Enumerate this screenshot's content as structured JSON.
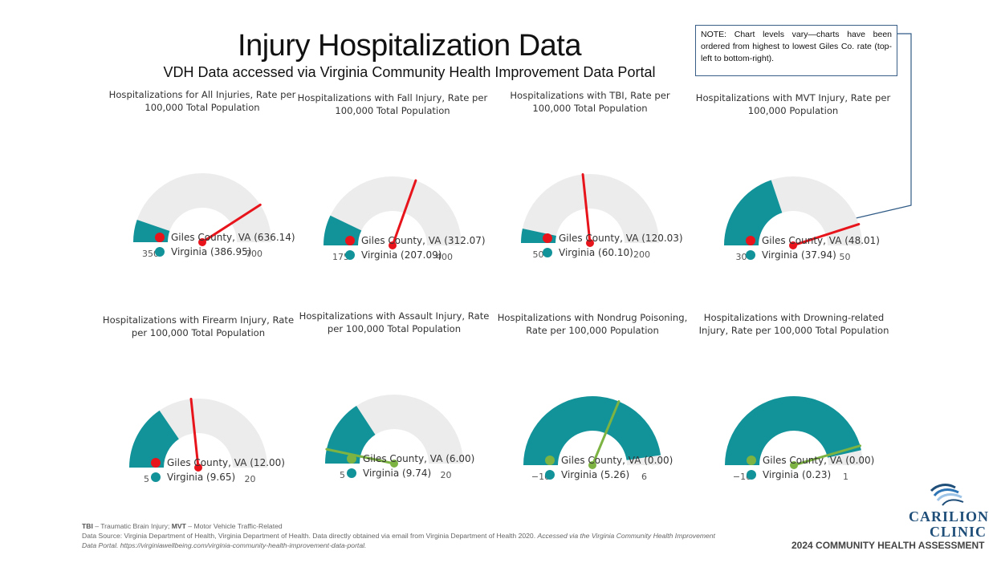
{
  "header": {
    "title": "Injury Hospitalization Data",
    "subtitle": "VDH Data accessed via Virginia Community Health Improvement Data Portal"
  },
  "note": "NOTE:  Chart levels vary—charts have been ordered from highest to lowest Giles Co. rate (top-left to bottom-right).",
  "colors": {
    "giles_above": "#e8141c",
    "giles_below": "#7cb342",
    "virginia": "#12939a",
    "track": "#ececec",
    "connector": "#2f5a86"
  },
  "chart_data": [
    {
      "type": "gauge",
      "title": "Hospitalizations for All Injuries, Rate per 100,000 Total Population",
      "min": 350,
      "max": 700,
      "min_label": "350",
      "max_label": "700",
      "giles": 636.14,
      "virginia": 386.95,
      "legend_giles": "Giles County, VA (636.14)",
      "legend_virginia": "Virginia (386.95)"
    },
    {
      "type": "gauge",
      "title": "Hospitalizations with Fall Injury, Rate per 100,000 Total Population",
      "min": 175,
      "max": 400,
      "min_label": "175",
      "max_label": "400",
      "giles": 312.07,
      "virginia": 207.09,
      "legend_giles": "Giles County, VA (312.07)",
      "legend_virginia": "Virginia (207.09)"
    },
    {
      "type": "gauge",
      "title": "Hospitalizations with TBI, Rate per 100,000 Total Population",
      "min": 50,
      "max": 200,
      "min_label": "50",
      "max_label": "200",
      "giles": 120.03,
      "virginia": 60.1,
      "legend_giles": "Giles County, VA (120.03)",
      "legend_virginia": "Virginia (60.10)"
    },
    {
      "type": "gauge",
      "title": "Hospitalizations with MVT Injury, Rate per 100,000 Population",
      "min": 30,
      "max": 50,
      "min_label": "30",
      "max_label": "50",
      "giles": 48.01,
      "virginia": 37.94,
      "legend_giles": "Giles County, VA (48.01)",
      "legend_virginia": "Virginia (37.94)"
    },
    {
      "type": "gauge",
      "title": "Hospitalizations with Firearm Injury, Rate per 100,000 Total Population",
      "min": 5,
      "max": 20,
      "min_label": "5",
      "max_label": "20",
      "giles": 12.0,
      "virginia": 9.65,
      "legend_giles": "Giles County, VA (12.00)",
      "legend_virginia": "Virginia (9.65)"
    },
    {
      "type": "gauge",
      "title": "Hospitalizations with Assault Injury, Rate per 100,000 Total Population",
      "min": 5,
      "max": 20,
      "min_label": "5",
      "max_label": "20",
      "giles": 6.0,
      "virginia": 9.74,
      "legend_giles": "Giles County, VA (6.00)",
      "legend_virginia": "Virginia (9.74)"
    },
    {
      "type": "gauge",
      "title": "Hospitalizations with Nondrug Poisoning, Rate per 100,000 Population",
      "min": -10,
      "max": 6,
      "min_label": "−10",
      "max_label": "6",
      "giles": 0.0,
      "virginia": 5.26,
      "legend_giles": "Giles County, VA (0.00)",
      "legend_virginia": "Virginia (5.26)"
    },
    {
      "type": "gauge",
      "title": "Hospitalizations with Drowning-related Injury, Rate per 100,000 Total Population",
      "min": -10,
      "max": 1,
      "min_label": "−10",
      "max_label": "1",
      "giles": 0.0,
      "virginia": 0.23,
      "legend_giles": "Giles County, VA (0.00)",
      "legend_virginia": "Virginia (0.23)"
    }
  ],
  "footer": {
    "abbr_tbi": "TBI",
    "abbr_tbi_def": " – Traumatic Brain Injury; ",
    "abbr_mvt": "MVT",
    "abbr_mvt_def": " – Motor Vehicle Traffic-Related",
    "source": "Data Source: Virginia Department of Health, Virginia Department of Health. Data directly obtained via email from Virginia Department of Health 2020. ",
    "source_italic": "Accessed via the Virginia Community Health Improvement Data Portal. https://virginiawellbeing.com/virginia-community-health-improvement-data-portal."
  },
  "branding": {
    "logo_line1": "CARILION",
    "logo_line2": "CLINIC",
    "report": "2024 COMMUNITY HEALTH ASSESSMENT"
  }
}
